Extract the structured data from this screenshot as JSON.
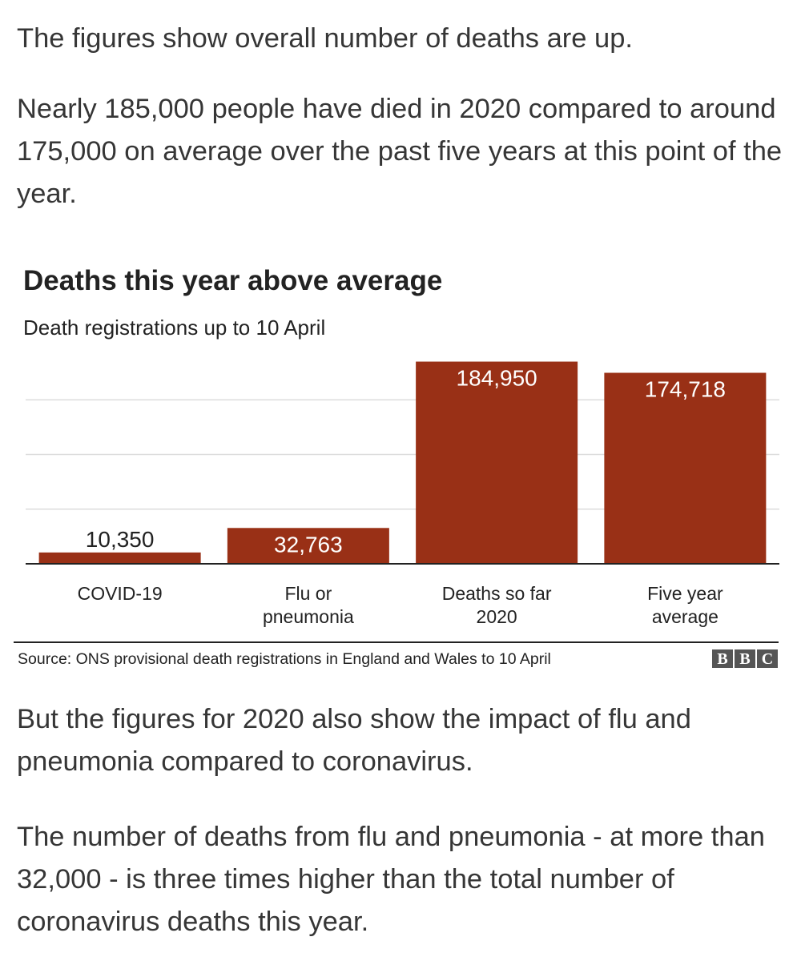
{
  "article": {
    "paragraph_1": "The figures show overall number of deaths are up.",
    "paragraph_2": "Nearly 185,000 people have died in 2020 compared to around 175,000 on average over the past five years at this point of the year.",
    "paragraph_3": "But the figures for 2020 also show the impact of flu and pneumonia compared to coronavirus.",
    "paragraph_4": "The number of deaths from flu and pneumonia - at more than 32,000 - is three times higher than the total number of coronavirus deaths this year."
  },
  "chart_data": {
    "type": "bar",
    "title": "Deaths this year above average",
    "subtitle": "Death registrations up to 10 April",
    "categories": [
      [
        "COVID-19"
      ],
      [
        "Flu or",
        "pneumonia"
      ],
      [
        "Deaths so far",
        "2020"
      ],
      [
        "Five year",
        "average"
      ]
    ],
    "values": [
      10350,
      32763,
      184950,
      174718
    ],
    "value_labels": [
      "10,350",
      "32,763",
      "184,950",
      "174,718"
    ],
    "ylim": [
      0,
      200000
    ],
    "gridlines": [
      50000,
      100000,
      150000
    ],
    "grid": true,
    "xlabel": "",
    "ylabel": "",
    "source": "Source: ONS provisional death registrations in England and Wales to 10 April",
    "colors": {
      "bar": "#993016",
      "grid": "#dcdcdc",
      "axis": "#222222"
    }
  },
  "branding": {
    "logo": [
      "B",
      "B",
      "C"
    ]
  }
}
